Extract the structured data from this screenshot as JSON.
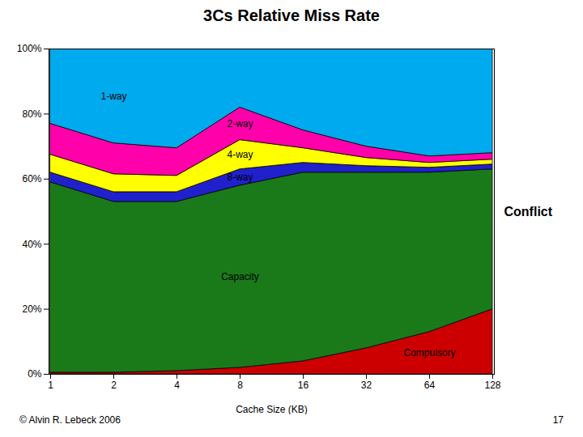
{
  "chart_data": {
    "type": "area",
    "title": "3Cs Relative Miss Rate",
    "x_label": "Cache Size (KB)",
    "categories": [
      "1",
      "2",
      "4",
      "8",
      "16",
      "32",
      "64",
      "128"
    ],
    "stacked": true,
    "series": [
      {
        "name": "Compulsory",
        "color": "#cc0000",
        "values": [
          0.5,
          0.5,
          1.0,
          2.0,
          4.0,
          8.0,
          13.0,
          20.0
        ]
      },
      {
        "name": "Capacity",
        "color": "#1a7a1a",
        "values": [
          58.5,
          52.5,
          52.0,
          56.0,
          58.0,
          54.0,
          49.0,
          43.0
        ]
      },
      {
        "name": "8-way",
        "color": "#2020cc",
        "values": [
          3.0,
          3.0,
          3.0,
          5.0,
          3.0,
          2.0,
          1.5,
          1.5
        ]
      },
      {
        "name": "4-way",
        "color": "#ffff00",
        "values": [
          5.5,
          5.5,
          5.0,
          9.0,
          4.5,
          2.5,
          1.5,
          1.5
        ]
      },
      {
        "name": "2-way",
        "color": "#ff00aa",
        "values": [
          9.5,
          9.5,
          8.5,
          10.0,
          5.5,
          3.5,
          2.0,
          2.0
        ]
      },
      {
        "name": "1-way",
        "color": "#00aaee",
        "values": [
          23.0,
          29.0,
          30.5,
          18.0,
          25.0,
          30.0,
          33.0,
          32.0
        ]
      }
    ],
    "ylim": [
      0,
      100
    ],
    "yticks": [
      {
        "value": 0,
        "label": "0%"
      },
      {
        "value": 20,
        "label": "20%"
      },
      {
        "value": 40,
        "label": "40%"
      },
      {
        "value": 60,
        "label": "60%"
      },
      {
        "value": 80,
        "label": "80%"
      },
      {
        "value": 100,
        "label": "100%"
      }
    ],
    "annotations": [
      "Conflict",
      "© Alvin R. Lebeck 2006",
      "17"
    ]
  }
}
